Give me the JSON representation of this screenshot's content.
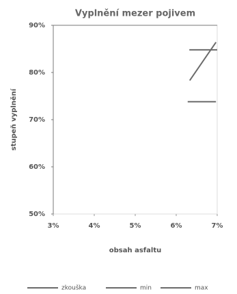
{
  "chart_data": {
    "type": "line",
    "title": "Vyplnění mezer pojivem",
    "x_label": "obsah asfaltu",
    "y_label": "stupeň vyplnění",
    "xlim": [
      3,
      7
    ],
    "xticks": [
      {
        "value": 3,
        "label": "3%"
      },
      {
        "value": 4,
        "label": "4%"
      },
      {
        "value": 5,
        "label": "5%"
      },
      {
        "value": 6,
        "label": "6%"
      },
      {
        "value": 7,
        "label": "7%"
      }
    ],
    "ylim": [
      50,
      90
    ],
    "yticks": [
      {
        "value": 50,
        "label": "50%"
      },
      {
        "value": 60,
        "label": "60%"
      },
      {
        "value": 70,
        "label": "70%"
      },
      {
        "value": 80,
        "label": "80%"
      },
      {
        "value": 90,
        "label": "90%"
      }
    ],
    "series": [
      {
        "name": "zkouška",
        "color": "#6a6a6a",
        "x": [
          6.33,
          6.97
        ],
        "values": [
          78.3,
          86.4
        ]
      },
      {
        "name": "min",
        "color": "#6a6a6a",
        "x": [
          6.28,
          6.97
        ],
        "values": [
          73.8,
          73.8
        ]
      },
      {
        "name": "max",
        "color": "#6a6a6a",
        "x": [
          6.32,
          7.0
        ],
        "values": [
          84.8,
          84.8
        ]
      }
    ]
  }
}
